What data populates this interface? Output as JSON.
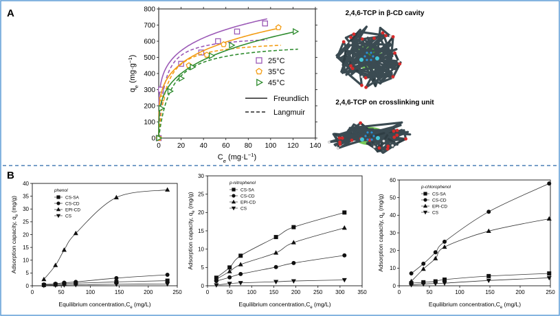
{
  "panel_labels": {
    "a": "A",
    "b": "B"
  },
  "colors": {
    "frame": "#5b9bd5",
    "purple": "#9b59b6",
    "orange": "#f39c12",
    "green": "#2e8b2e",
    "black": "#222222"
  },
  "molecules": {
    "top_caption": "2,4,6-TCP in β-CD cavity",
    "bottom_caption": "2,4,6-TCP on crosslinking unit"
  },
  "chart_data": [
    {
      "id": "isotherm",
      "type": "scatter",
      "title": "",
      "xlabel": "C",
      "xlabel_sub": "e",
      "xlabel_unit": " (mg·L",
      "xlabel_sup": "−1",
      "xlabel_close": ")",
      "ylabel": "q",
      "ylabel_sub": "e",
      "ylabel_unit": " (mg·g",
      "ylabel_sup": "−1",
      "ylabel_close": ")",
      "xlim": [
        0,
        140
      ],
      "ylim": [
        0,
        800
      ],
      "xticks": [
        "0",
        "20",
        "40",
        "60",
        "80",
        "100",
        "120",
        "140"
      ],
      "yticks": [
        "0",
        "100",
        "200",
        "300",
        "400",
        "500",
        "600",
        "700",
        "800"
      ],
      "legend_placement": "center-right",
      "series": [
        {
          "name": "25°C",
          "color": "#9b59b6",
          "marker": "square",
          "x": [
            0,
            2,
            20,
            38,
            53,
            70,
            95
          ],
          "y": [
            0,
            300,
            460,
            530,
            600,
            660,
            710
          ],
          "freundlich": [
            300,
            0.197
          ],
          "langmuir": [
            640,
            0.2
          ]
        },
        {
          "name": "35°C",
          "color": "#f39c12",
          "marker": "pentagon",
          "x": [
            0,
            3,
            27,
            43,
            58,
            107
          ],
          "y": [
            0,
            245,
            450,
            515,
            580,
            685
          ],
          "freundlich": [
            230,
            0.232
          ],
          "langmuir": [
            610,
            0.15
          ]
        },
        {
          "name": "45°C",
          "color": "#2e8b2e",
          "marker": "triangle-right",
          "x": [
            0,
            2,
            10,
            20,
            30,
            47,
            65,
            122
          ],
          "y": [
            0,
            185,
            290,
            370,
            440,
            510,
            575,
            660
          ],
          "freundlich": [
            175,
            0.276
          ],
          "langmuir": [
            600,
            0.09
          ]
        }
      ],
      "legend_line_labels": [
        "Freundlich",
        "Langmuir"
      ]
    },
    {
      "id": "phenol",
      "type": "line",
      "legend_title": "phenol",
      "xlabel": "Equilibrium concentration,C",
      "xlabel_sub": "e",
      "xlabel_unit": " (mg/L)",
      "ylabel": "Adsorption capacity, q",
      "ylabel_sub": "e",
      "ylabel_unit": " (mg/g)",
      "xlim": [
        0,
        250
      ],
      "ylim": [
        0,
        40
      ],
      "xticks": [
        "0",
        "50",
        "100",
        "150",
        "200",
        "250"
      ],
      "yticks": [
        "0",
        "5",
        "10",
        "15",
        "20",
        "25",
        "30",
        "35",
        "40"
      ],
      "series": [
        {
          "name": "CS-SA",
          "marker": "square",
          "x": [
            20,
            40,
            55,
            75,
            145,
            233
          ],
          "y": [
            0.3,
            0.5,
            0.8,
            1.0,
            1.5,
            2.0
          ]
        },
        {
          "name": "CS-CD",
          "marker": "circle",
          "x": [
            20,
            40,
            55,
            75,
            145,
            233
          ],
          "y": [
            0.5,
            0.8,
            1.2,
            1.5,
            3.0,
            4.3
          ]
        },
        {
          "name": "EPI-CD",
          "marker": "triangle",
          "x": [
            20,
            40,
            55,
            75,
            145,
            233
          ],
          "y": [
            2.5,
            8.0,
            14.0,
            20.5,
            34.5,
            37.5
          ]
        },
        {
          "name": "CS",
          "marker": "triangle-down",
          "x": [
            20,
            40,
            55,
            75,
            145,
            233
          ],
          "y": [
            0.1,
            0.2,
            0.3,
            0.4,
            0.6,
            0.7
          ]
        }
      ]
    },
    {
      "id": "nitrophenol",
      "type": "line",
      "legend_title": "p-nitrophenol",
      "xlabel": "Equilibrium concentration,C",
      "xlabel_sub": "e",
      "xlabel_unit": " (mg/L)",
      "ylabel": "Adsorption capacity, q",
      "ylabel_sub": "e",
      "ylabel_unit": " (mg/g)",
      "xlim": [
        0,
        350
      ],
      "ylim": [
        0,
        30
      ],
      "xticks": [
        "0",
        "50",
        "100",
        "150",
        "200",
        "250",
        "300",
        "350"
      ],
      "yticks": [
        "0",
        "5",
        "10",
        "15",
        "20",
        "25",
        "30"
      ],
      "series": [
        {
          "name": "CS-SA",
          "marker": "square",
          "x": [
            20,
            50,
            75,
            155,
            195,
            310
          ],
          "y": [
            2.2,
            5.0,
            8.2,
            13.3,
            16.0,
            20.0
          ]
        },
        {
          "name": "CS-CD",
          "marker": "circle",
          "x": [
            20,
            50,
            75,
            155,
            195,
            310
          ],
          "y": [
            1.3,
            2.3,
            3.2,
            5.1,
            6.2,
            8.3
          ]
        },
        {
          "name": "EPI-CD",
          "marker": "triangle",
          "x": [
            20,
            50,
            75,
            155,
            195,
            310
          ],
          "y": [
            1.8,
            3.9,
            5.8,
            9.0,
            11.8,
            15.8
          ]
        },
        {
          "name": "CS",
          "marker": "triangle-down",
          "x": [
            20,
            50,
            75,
            155,
            195,
            310
          ],
          "y": [
            0.2,
            0.6,
            0.8,
            1.1,
            1.3,
            1.6
          ]
        }
      ]
    },
    {
      "id": "chlorophenol",
      "type": "line",
      "legend_title": "p-chlorophenol",
      "xlabel": "Equilibrium concentration,C",
      "xlabel_sub": "e",
      "xlabel_unit": " (mg/L)",
      "ylabel": "Adsorption capacity, q",
      "ylabel_sub": "e",
      "ylabel_unit": " (mg/g)",
      "xlim": [
        0,
        250
      ],
      "ylim": [
        0,
        60
      ],
      "xticks": [
        "0",
        "50",
        "100",
        "150",
        "200",
        "250"
      ],
      "yticks": [
        "0",
        "10",
        "20",
        "30",
        "40",
        "50",
        "60"
      ],
      "series": [
        {
          "name": "CS-SA",
          "marker": "square",
          "x": [
            20,
            40,
            60,
            75,
            148,
            248
          ],
          "y": [
            1.5,
            2.0,
            2.5,
            3.5,
            5.5,
            7.0
          ]
        },
        {
          "name": "CS-CD",
          "marker": "circle",
          "x": [
            20,
            40,
            60,
            75,
            148,
            248
          ],
          "y": [
            7.0,
            12.5,
            19.0,
            25.0,
            42.0,
            58.0
          ]
        },
        {
          "name": "EPI-CD",
          "marker": "triangle",
          "x": [
            20,
            40,
            60,
            75,
            148,
            248
          ],
          "y": [
            2.5,
            9.5,
            15.5,
            22.0,
            31.0,
            38.0
          ]
        },
        {
          "name": "CS",
          "marker": "triangle-down",
          "x": [
            20,
            40,
            60,
            75,
            148,
            248
          ],
          "y": [
            0.5,
            1.0,
            1.3,
            1.5,
            3.0,
            4.5
          ]
        }
      ]
    }
  ]
}
